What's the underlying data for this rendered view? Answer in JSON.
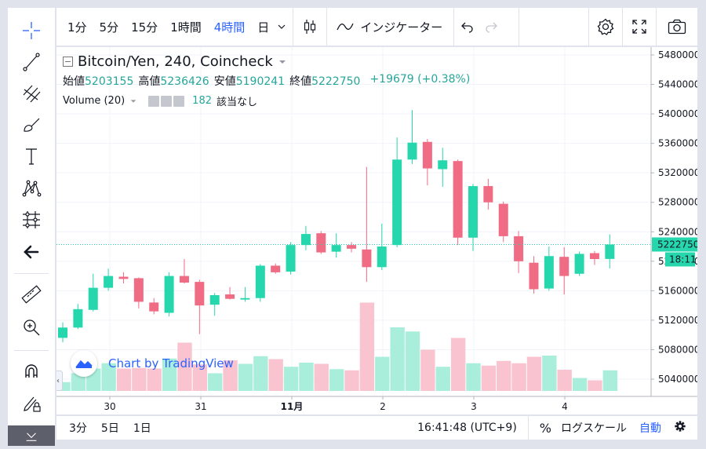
{
  "left_toolbar": {
    "tools": [
      {
        "icon": "crosshair-icon"
      },
      {
        "icon": "trend-line-icon"
      },
      {
        "icon": "fib-retracement-icon"
      },
      {
        "icon": "brush-icon"
      },
      {
        "icon": "text-icon"
      },
      {
        "icon": "pattern-icon"
      },
      {
        "icon": "prediction-icon"
      },
      {
        "icon": "arrow-left-icon"
      },
      {
        "icon": "ruler-icon"
      },
      {
        "icon": "zoom-in-icon"
      },
      {
        "icon": "magnet-icon"
      },
      {
        "icon": "lock-pencil-icon"
      }
    ]
  },
  "top_toolbar": {
    "intervals": [
      "1分",
      "5分",
      "15分",
      "1時間",
      "4時間",
      "日"
    ],
    "active_interval": "4時間",
    "indicators_label": "インジケーター"
  },
  "legend": {
    "title": "Bitcoin/Yen, 240, Coincheck",
    "open_label": "始値",
    "open": "5203155",
    "high_label": "高値",
    "high": "5236426",
    "low_label": "安値",
    "low": "5190241",
    "close_label": "終値",
    "close": "5222750",
    "change": "+19679 (+0.38%)",
    "volume_label": "Volume (20)",
    "volume_value": "182",
    "volume_note": "該当なし"
  },
  "watermark": "Chart by TradingView",
  "price_axis": {
    "ticks": [
      "5480000",
      "5440000",
      "5400000",
      "5360000",
      "5320000",
      "5280000",
      "5240000",
      "5200000",
      "5160000",
      "5120000",
      "5080000",
      "5040000"
    ],
    "last_price": "5222750",
    "countdown": "18:11"
  },
  "time_axis": {
    "labels": [
      "30",
      "31",
      "11月",
      "2",
      "3",
      "4"
    ]
  },
  "bottom_bar": {
    "ranges": [
      "3分",
      "5日",
      "1日"
    ],
    "clock": "16:41:48 (UTC+9)",
    "percent": "%",
    "log_scale": "ログスケール",
    "auto": "自動"
  },
  "colors": {
    "up": "#26d7ae",
    "down": "#f06b84",
    "up_volume": "#a9eedb",
    "down_volume": "#f9c4cf",
    "accent": "#2962ff"
  },
  "chart_data": {
    "type": "candlestick",
    "price_range": [
      5020000,
      5490000
    ],
    "candles": [
      {
        "o": 5096000,
        "h": 5117000,
        "l": 5090000,
        "c": 5110000
      },
      {
        "o": 5110000,
        "h": 5142000,
        "l": 5108000,
        "c": 5135000
      },
      {
        "o": 5134000,
        "h": 5183000,
        "l": 5132000,
        "c": 5164000
      },
      {
        "o": 5164000,
        "h": 5190000,
        "l": 5160000,
        "c": 5180000
      },
      {
        "o": 5179000,
        "h": 5185000,
        "l": 5170000,
        "c": 5176000
      },
      {
        "o": 5177000,
        "h": 5178000,
        "l": 5136000,
        "c": 5145000
      },
      {
        "o": 5144000,
        "h": 5150000,
        "l": 5128000,
        "c": 5132000
      },
      {
        "o": 5130000,
        "h": 5185000,
        "l": 5125000,
        "c": 5180000
      },
      {
        "o": 5180000,
        "h": 5203000,
        "l": 5170000,
        "c": 5171000
      },
      {
        "o": 5172000,
        "h": 5175000,
        "l": 5101000,
        "c": 5140000
      },
      {
        "o": 5141000,
        "h": 5157000,
        "l": 5126000,
        "c": 5154000
      },
      {
        "o": 5155000,
        "h": 5165000,
        "l": 5148000,
        "c": 5149000
      },
      {
        "o": 5148000,
        "h": 5165000,
        "l": 5145000,
        "c": 5150000
      },
      {
        "o": 5150000,
        "h": 5196000,
        "l": 5145000,
        "c": 5194000
      },
      {
        "o": 5194000,
        "h": 5197000,
        "l": 5183000,
        "c": 5185000
      },
      {
        "o": 5186000,
        "h": 5226000,
        "l": 5182000,
        "c": 5222000
      },
      {
        "o": 5222000,
        "h": 5248000,
        "l": 5215000,
        "c": 5237000
      },
      {
        "o": 5238000,
        "h": 5241000,
        "l": 5210000,
        "c": 5212000
      },
      {
        "o": 5213000,
        "h": 5238000,
        "l": 5205000,
        "c": 5222000
      },
      {
        "o": 5222000,
        "h": 5226000,
        "l": 5212000,
        "c": 5217000
      },
      {
        "o": 5216000,
        "h": 5328000,
        "l": 5172000,
        "c": 5192000
      },
      {
        "o": 5192000,
        "h": 5251000,
        "l": 5188000,
        "c": 5220000
      },
      {
        "o": 5222000,
        "h": 5368000,
        "l": 5219000,
        "c": 5338000
      },
      {
        "o": 5338000,
        "h": 5405000,
        "l": 5332000,
        "c": 5361000
      },
      {
        "o": 5362000,
        "h": 5366000,
        "l": 5303000,
        "c": 5326000
      },
      {
        "o": 5325000,
        "h": 5354000,
        "l": 5301000,
        "c": 5337000
      },
      {
        "o": 5336000,
        "h": 5338000,
        "l": 5222000,
        "c": 5232000
      },
      {
        "o": 5232000,
        "h": 5305000,
        "l": 5214000,
        "c": 5302000
      },
      {
        "o": 5302000,
        "h": 5312000,
        "l": 5270000,
        "c": 5280000
      },
      {
        "o": 5278000,
        "h": 5281000,
        "l": 5226000,
        "c": 5234000
      },
      {
        "o": 5234000,
        "h": 5241000,
        "l": 5184000,
        "c": 5200000
      },
      {
        "o": 5198000,
        "h": 5207000,
        "l": 5156000,
        "c": 5162000
      },
      {
        "o": 5163000,
        "h": 5220000,
        "l": 5160000,
        "c": 5207000
      },
      {
        "o": 5206000,
        "h": 5219000,
        "l": 5155000,
        "c": 5180000
      },
      {
        "o": 5183000,
        "h": 5213000,
        "l": 5180000,
        "c": 5210000
      },
      {
        "o": 5211000,
        "h": 5214000,
        "l": 5195000,
        "c": 5203000
      },
      {
        "o": 5203155,
        "h": 5236426,
        "l": 5190241,
        "c": 5222750
      }
    ],
    "volume": [
      15,
      30,
      38,
      47,
      38,
      39,
      38,
      55,
      82,
      45,
      30,
      52,
      46,
      59,
      54,
      41,
      48,
      46,
      37,
      35,
      150,
      58,
      108,
      101,
      70,
      41,
      90,
      47,
      43,
      51,
      47,
      58,
      60,
      36,
      22,
      18,
      35
    ]
  }
}
